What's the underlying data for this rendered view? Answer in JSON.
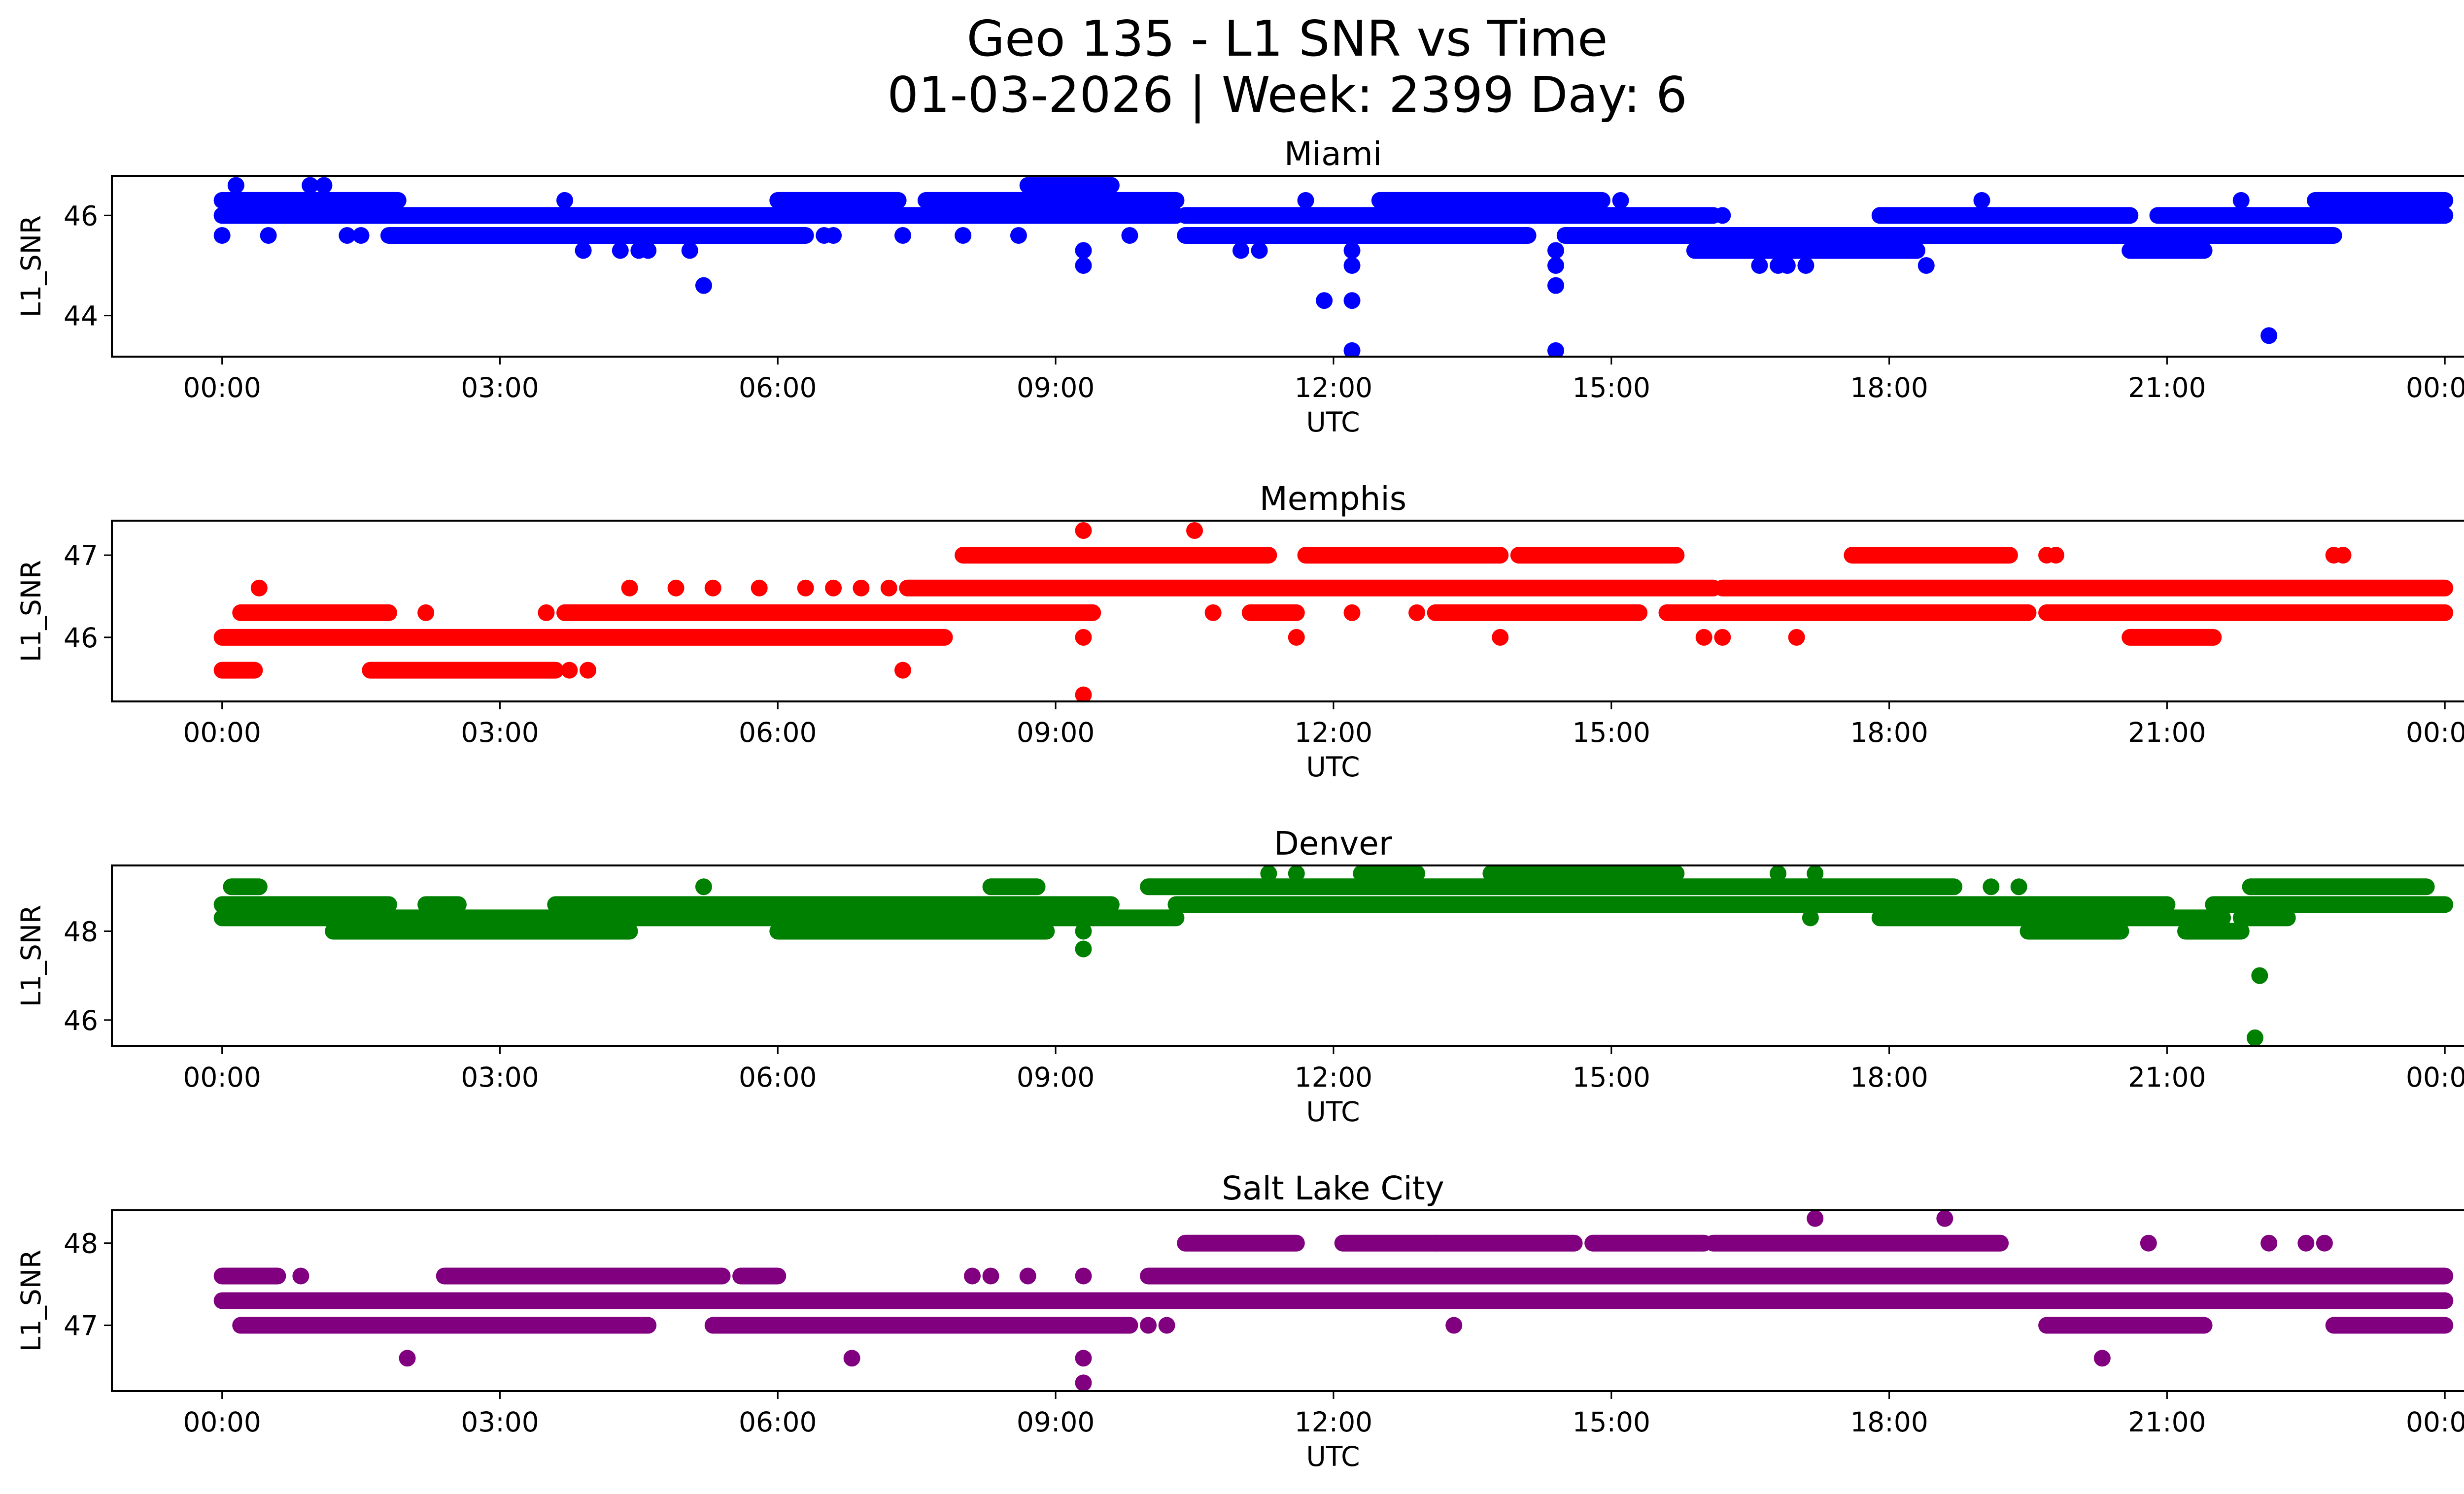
{
  "chart_data": {
    "type": "scatter",
    "title": "Geo 135 - L1 SNR vs Time",
    "subtitle": "01-03-2026 | Week: 2399 Day: 6",
    "x_ticks": [
      "00:00",
      "03:00",
      "06:00",
      "09:00",
      "12:00",
      "15:00",
      "18:00",
      "21:00",
      "00:00"
    ],
    "x_tick_hours": [
      0,
      3,
      6,
      9,
      12,
      15,
      18,
      21,
      24
    ],
    "xlim_hours": [
      -1.19,
      25.18
    ],
    "panels": [
      {
        "name": "Miami",
        "color": "#0000ff",
        "xlabel": "UTC",
        "ylabel": "L1_SNR",
        "ylim": [
          43.18,
          46.79
        ],
        "y_ticks": [
          44,
          46
        ],
        "runs": [
          {
            "y": 46.0,
            "from": 0.0,
            "to": 10.3
          },
          {
            "y": 46.0,
            "from": 10.4,
            "to": 16.1
          },
          {
            "y": 46.0,
            "from": 17.9,
            "to": 20.6
          },
          {
            "y": 46.0,
            "from": 20.9,
            "to": 24.0
          },
          {
            "y": 46.3,
            "from": 0.0,
            "to": 1.9
          },
          {
            "y": 46.3,
            "from": 6.0,
            "to": 7.3
          },
          {
            "y": 46.3,
            "from": 7.6,
            "to": 10.3
          },
          {
            "y": 46.3,
            "from": 12.5,
            "to": 14.9
          },
          {
            "y": 46.3,
            "from": 22.6,
            "to": 24.0
          },
          {
            "y": 45.6,
            "from": 1.8,
            "to": 6.3
          },
          {
            "y": 45.6,
            "from": 10.4,
            "to": 14.1
          },
          {
            "y": 45.6,
            "from": 14.5,
            "to": 22.8
          },
          {
            "y": 45.3,
            "from": 15.9,
            "to": 18.3
          },
          {
            "y": 45.3,
            "from": 20.6,
            "to": 21.4
          },
          {
            "y": 46.6,
            "from": 8.7,
            "to": 9.6
          }
        ],
        "points": [
          {
            "x": 0.15,
            "y": 46.6
          },
          {
            "x": 0.95,
            "y": 46.6
          },
          {
            "x": 1.1,
            "y": 46.6
          },
          {
            "x": 0.0,
            "y": 45.6
          },
          {
            "x": 0.5,
            "y": 45.6
          },
          {
            "x": 1.35,
            "y": 45.6
          },
          {
            "x": 1.5,
            "y": 45.6
          },
          {
            "x": 3.7,
            "y": 46.3
          },
          {
            "x": 3.9,
            "y": 45.3
          },
          {
            "x": 4.3,
            "y": 45.3
          },
          {
            "x": 4.5,
            "y": 45.3
          },
          {
            "x": 4.6,
            "y": 45.3
          },
          {
            "x": 5.05,
            "y": 45.3
          },
          {
            "x": 5.2,
            "y": 44.6
          },
          {
            "x": 6.5,
            "y": 45.6
          },
          {
            "x": 6.6,
            "y": 45.6
          },
          {
            "x": 7.35,
            "y": 45.6
          },
          {
            "x": 8.0,
            "y": 45.6
          },
          {
            "x": 8.6,
            "y": 45.6
          },
          {
            "x": 9.3,
            "y": 45.3
          },
          {
            "x": 9.3,
            "y": 45.0
          },
          {
            "x": 9.8,
            "y": 45.6
          },
          {
            "x": 11.0,
            "y": 45.3
          },
          {
            "x": 11.2,
            "y": 45.3
          },
          {
            "x": 11.7,
            "y": 46.3
          },
          {
            "x": 11.9,
            "y": 44.3
          },
          {
            "x": 12.2,
            "y": 44.3
          },
          {
            "x": 12.2,
            "y": 45.3
          },
          {
            "x": 12.2,
            "y": 45.0
          },
          {
            "x": 12.2,
            "y": 43.3
          },
          {
            "x": 14.4,
            "y": 45.3
          },
          {
            "x": 14.4,
            "y": 45.0
          },
          {
            "x": 14.4,
            "y": 44.6
          },
          {
            "x": 14.4,
            "y": 43.3
          },
          {
            "x": 15.1,
            "y": 46.3
          },
          {
            "x": 16.0,
            "y": 46.0
          },
          {
            "x": 16.2,
            "y": 46.0
          },
          {
            "x": 16.6,
            "y": 45.0
          },
          {
            "x": 16.8,
            "y": 45.0
          },
          {
            "x": 16.9,
            "y": 45.0
          },
          {
            "x": 17.1,
            "y": 45.0
          },
          {
            "x": 18.4,
            "y": 45.0
          },
          {
            "x": 19.0,
            "y": 46.3
          },
          {
            "x": 21.8,
            "y": 46.3
          },
          {
            "x": 22.1,
            "y": 43.6
          }
        ]
      },
      {
        "name": "Memphis",
        "color": "#ff0000",
        "xlabel": "UTC",
        "ylabel": "L1_SNR",
        "ylim": [
          45.22,
          47.42
        ],
        "y_ticks": [
          46,
          47
        ],
        "runs": [
          {
            "y": 46.0,
            "from": 0.0,
            "to": 7.8
          },
          {
            "y": 45.6,
            "from": 0.0,
            "to": 0.35
          },
          {
            "y": 45.6,
            "from": 1.6,
            "to": 3.6
          },
          {
            "y": 46.3,
            "from": 0.2,
            "to": 1.8
          },
          {
            "y": 46.3,
            "from": 3.7,
            "to": 9.4
          },
          {
            "y": 46.6,
            "from": 7.4,
            "to": 16.1
          },
          {
            "y": 46.6,
            "from": 16.2,
            "to": 24.0
          },
          {
            "y": 47.0,
            "from": 8.0,
            "to": 11.3
          },
          {
            "y": 47.0,
            "from": 11.7,
            "to": 13.8
          },
          {
            "y": 47.0,
            "from": 14.0,
            "to": 15.7
          },
          {
            "y": 47.0,
            "from": 17.6,
            "to": 19.3
          },
          {
            "y": 46.3,
            "from": 11.1,
            "to": 11.6
          },
          {
            "y": 46.3,
            "from": 13.1,
            "to": 15.3
          },
          {
            "y": 46.3,
            "from": 15.6,
            "to": 19.5
          },
          {
            "y": 46.3,
            "from": 19.7,
            "to": 24.0
          },
          {
            "y": 46.0,
            "from": 20.6,
            "to": 21.5
          }
        ],
        "points": [
          {
            "x": 0.4,
            "y": 46.6
          },
          {
            "x": 2.2,
            "y": 46.3
          },
          {
            "x": 3.5,
            "y": 46.3
          },
          {
            "x": 3.75,
            "y": 45.6
          },
          {
            "x": 3.95,
            "y": 45.6
          },
          {
            "x": 4.4,
            "y": 46.6
          },
          {
            "x": 4.9,
            "y": 46.6
          },
          {
            "x": 5.3,
            "y": 46.6
          },
          {
            "x": 5.8,
            "y": 46.6
          },
          {
            "x": 6.3,
            "y": 46.6
          },
          {
            "x": 6.6,
            "y": 46.6
          },
          {
            "x": 6.9,
            "y": 46.6
          },
          {
            "x": 7.2,
            "y": 46.6
          },
          {
            "x": 7.35,
            "y": 45.6
          },
          {
            "x": 9.3,
            "y": 47.3
          },
          {
            "x": 9.3,
            "y": 46.0
          },
          {
            "x": 9.3,
            "y": 45.3
          },
          {
            "x": 10.5,
            "y": 47.3
          },
          {
            "x": 10.7,
            "y": 46.3
          },
          {
            "x": 11.6,
            "y": 46.0
          },
          {
            "x": 12.2,
            "y": 46.3
          },
          {
            "x": 12.9,
            "y": 46.3
          },
          {
            "x": 13.8,
            "y": 46.0
          },
          {
            "x": 16.0,
            "y": 46.0
          },
          {
            "x": 16.2,
            "y": 46.0
          },
          {
            "x": 17.0,
            "y": 46.0
          },
          {
            "x": 19.7,
            "y": 47.0
          },
          {
            "x": 19.8,
            "y": 47.0
          },
          {
            "x": 22.8,
            "y": 47.0
          },
          {
            "x": 22.9,
            "y": 47.0
          }
        ]
      },
      {
        "name": "Denver",
        "color": "#008000",
        "xlabel": "UTC",
        "ylabel": "L1_SNR",
        "ylim": [
          45.41,
          49.48
        ],
        "y_ticks": [
          46,
          48
        ],
        "runs": [
          {
            "y": 48.6,
            "from": 0.0,
            "to": 1.8
          },
          {
            "y": 48.6,
            "from": 2.2,
            "to": 2.55
          },
          {
            "y": 48.6,
            "from": 3.6,
            "to": 9.6
          },
          {
            "y": 48.3,
            "from": 0.0,
            "to": 9.4
          },
          {
            "y": 48.3,
            "from": 9.4,
            "to": 10.3
          },
          {
            "y": 48.0,
            "from": 1.2,
            "to": 4.4
          },
          {
            "y": 48.0,
            "from": 6.0,
            "to": 8.9
          },
          {
            "y": 49.0,
            "from": 0.1,
            "to": 0.4
          },
          {
            "y": 49.0,
            "from": 8.3,
            "to": 8.8
          },
          {
            "y": 49.0,
            "from": 10.0,
            "to": 18.7
          },
          {
            "y": 48.6,
            "from": 10.3,
            "to": 21.0
          },
          {
            "y": 48.6,
            "from": 21.5,
            "to": 24.0
          },
          {
            "y": 49.3,
            "from": 12.3,
            "to": 12.9
          },
          {
            "y": 49.3,
            "from": 13.7,
            "to": 15.7
          },
          {
            "y": 48.3,
            "from": 17.9,
            "to": 21.6
          },
          {
            "y": 48.0,
            "from": 19.5,
            "to": 20.5
          },
          {
            "y": 48.0,
            "from": 21.2,
            "to": 21.8
          },
          {
            "y": 48.3,
            "from": 21.8,
            "to": 22.3
          },
          {
            "y": 49.0,
            "from": 21.9,
            "to": 23.8
          }
        ],
        "points": [
          {
            "x": 5.2,
            "y": 49.0
          },
          {
            "x": 9.3,
            "y": 48.0
          },
          {
            "x": 9.3,
            "y": 47.6
          },
          {
            "x": 11.3,
            "y": 49.3
          },
          {
            "x": 11.6,
            "y": 49.3
          },
          {
            "x": 16.8,
            "y": 49.3
          },
          {
            "x": 17.2,
            "y": 49.3
          },
          {
            "x": 17.15,
            "y": 48.3
          },
          {
            "x": 19.1,
            "y": 49.0
          },
          {
            "x": 19.4,
            "y": 49.0
          },
          {
            "x": 22.0,
            "y": 47.0
          },
          {
            "x": 21.95,
            "y": 45.6
          }
        ]
      },
      {
        "name": "Salt Lake City",
        "color": "#800080",
        "xlabel": "UTC",
        "ylabel": "L1_SNR",
        "ylim": [
          46.2,
          48.4
        ],
        "y_ticks": [
          47,
          48
        ],
        "runs": [
          {
            "y": 47.3,
            "from": 0.0,
            "to": 24.0
          },
          {
            "y": 47.6,
            "from": 0.0,
            "to": 0.6
          },
          {
            "y": 47.6,
            "from": 2.4,
            "to": 4.6
          },
          {
            "y": 47.6,
            "from": 4.6,
            "to": 5.4
          },
          {
            "y": 47.6,
            "from": 5.6,
            "to": 6.0
          },
          {
            "y": 47.0,
            "from": 0.2,
            "to": 4.6
          },
          {
            "y": 47.0,
            "from": 5.3,
            "to": 9.8
          },
          {
            "y": 47.6,
            "from": 10.0,
            "to": 24.0
          },
          {
            "y": 48.0,
            "from": 10.4,
            "to": 11.6
          },
          {
            "y": 48.0,
            "from": 12.1,
            "to": 13.1
          },
          {
            "y": 48.0,
            "from": 13.1,
            "to": 14.6
          },
          {
            "y": 48.0,
            "from": 14.8,
            "to": 16.0
          },
          {
            "y": 48.0,
            "from": 16.1,
            "to": 19.2
          },
          {
            "y": 47.3,
            "from": 10.2,
            "to": 24.0
          },
          {
            "y": 47.0,
            "from": 19.7,
            "to": 21.4
          },
          {
            "y": 47.0,
            "from": 22.8,
            "to": 24.0
          }
        ],
        "points": [
          {
            "x": 0.85,
            "y": 47.6
          },
          {
            "x": 2.0,
            "y": 46.6
          },
          {
            "x": 2.7,
            "y": 47.6
          },
          {
            "x": 2.9,
            "y": 47.6
          },
          {
            "x": 6.8,
            "y": 46.6
          },
          {
            "x": 8.1,
            "y": 47.6
          },
          {
            "x": 8.3,
            "y": 47.6
          },
          {
            "x": 8.7,
            "y": 47.6
          },
          {
            "x": 9.3,
            "y": 47.6
          },
          {
            "x": 9.3,
            "y": 46.6
          },
          {
            "x": 9.3,
            "y": 46.3
          },
          {
            "x": 10.0,
            "y": 47.0
          },
          {
            "x": 10.2,
            "y": 47.0
          },
          {
            "x": 13.3,
            "y": 47.0
          },
          {
            "x": 17.2,
            "y": 48.3
          },
          {
            "x": 18.6,
            "y": 48.3
          },
          {
            "x": 20.3,
            "y": 46.6
          },
          {
            "x": 20.8,
            "y": 48.0
          },
          {
            "x": 22.1,
            "y": 48.0
          },
          {
            "x": 22.5,
            "y": 48.0
          },
          {
            "x": 22.7,
            "y": 48.0
          }
        ]
      }
    ]
  }
}
